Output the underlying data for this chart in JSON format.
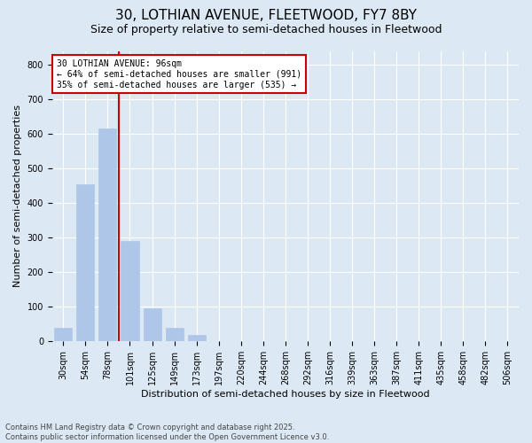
{
  "title1": "30, LOTHIAN AVENUE, FLEETWOOD, FY7 8BY",
  "title2": "Size of property relative to semi-detached houses in Fleetwood",
  "xlabel": "Distribution of semi-detached houses by size in Fleetwood",
  "ylabel": "Number of semi-detached properties",
  "categories": [
    "30sqm",
    "54sqm",
    "78sqm",
    "101sqm",
    "125sqm",
    "149sqm",
    "173sqm",
    "197sqm",
    "220sqm",
    "244sqm",
    "268sqm",
    "292sqm",
    "316sqm",
    "339sqm",
    "363sqm",
    "387sqm",
    "411sqm",
    "435sqm",
    "458sqm",
    "482sqm",
    "506sqm"
  ],
  "values": [
    40,
    455,
    615,
    290,
    95,
    40,
    20,
    0,
    0,
    0,
    0,
    0,
    0,
    0,
    0,
    0,
    0,
    0,
    0,
    0,
    0
  ],
  "bar_color": "#aec6e8",
  "bar_edge_color": "#aec6e8",
  "vline_color": "#cc0000",
  "annotation_text": "30 LOTHIAN AVENUE: 96sqm\n← 64% of semi-detached houses are smaller (991)\n35% of semi-detached houses are larger (535) →",
  "annotation_box_color": "#ffffff",
  "annotation_box_edge": "#cc0000",
  "ylim": [
    0,
    840
  ],
  "yticks": [
    0,
    100,
    200,
    300,
    400,
    500,
    600,
    700,
    800
  ],
  "background_color": "#dce9f5",
  "footer": "Contains HM Land Registry data © Crown copyright and database right 2025.\nContains public sector information licensed under the Open Government Licence v3.0.",
  "title_fontsize": 11,
  "subtitle_fontsize": 9,
  "axis_label_fontsize": 8,
  "tick_fontsize": 7,
  "footer_fontsize": 6,
  "annotation_fontsize": 7
}
